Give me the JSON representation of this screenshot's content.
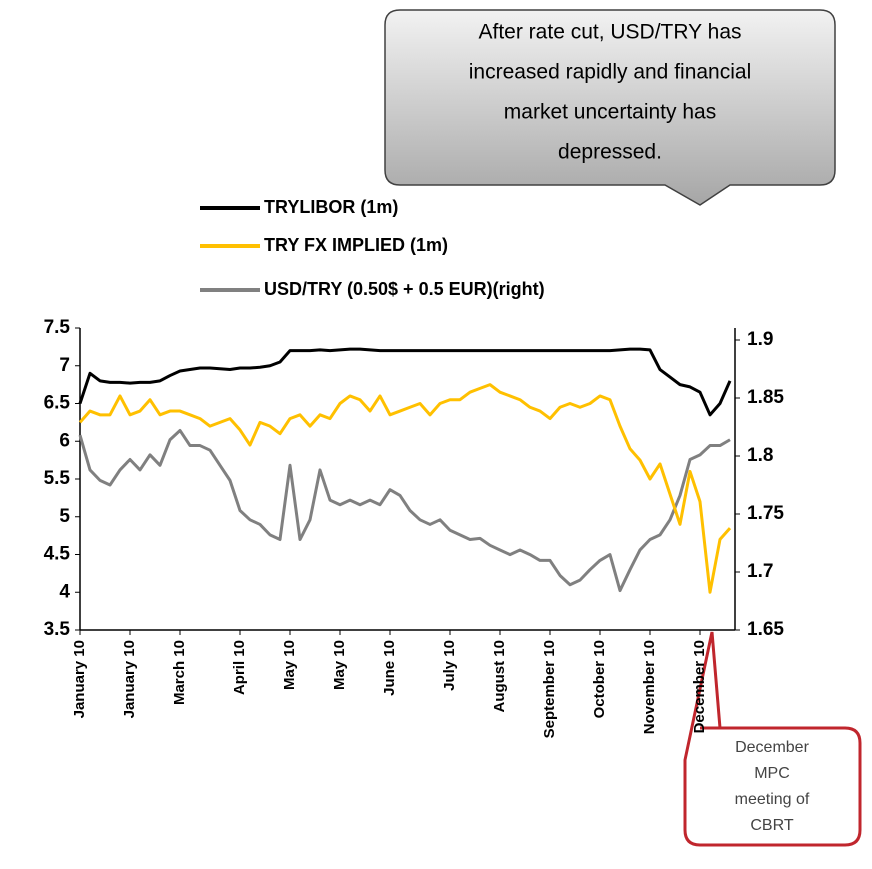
{
  "chart_data": {
    "type": "line",
    "legend": "top",
    "xlim": [
      0,
      65
    ],
    "xticks": [
      {
        "value": 0,
        "label": "January 10"
      },
      {
        "value": 5,
        "label": "January 10"
      },
      {
        "value": 10,
        "label": "March 10"
      },
      {
        "value": 16,
        "label": "April 10"
      },
      {
        "value": 21,
        "label": "May 10"
      },
      {
        "value": 26,
        "label": "May 10"
      },
      {
        "value": 31,
        "label": "June 10"
      },
      {
        "value": 37,
        "label": "July 10"
      },
      {
        "value": 42,
        "label": "August 10"
      },
      {
        "value": 47,
        "label": "September 10"
      },
      {
        "value": 52,
        "label": "October 10"
      },
      {
        "value": 57,
        "label": "November 10"
      },
      {
        "value": 62,
        "label": "December 10"
      }
    ],
    "ylim": [
      3.5,
      7.5
    ],
    "yticks": [
      3.5,
      4,
      4.5,
      5,
      5.5,
      6,
      6.5,
      7,
      7.5
    ],
    "y2lim": [
      1.65,
      1.9
    ],
    "y2ticks": [
      1.65,
      1.7,
      1.75,
      1.8,
      1.85,
      1.9
    ],
    "series": [
      {
        "name": "TRYLIBOR (1m)",
        "color": "#000000",
        "values": [
          6.5,
          6.9,
          6.8,
          6.78,
          6.78,
          6.77,
          6.78,
          6.78,
          6.8,
          6.87,
          6.93,
          6.95,
          6.97,
          6.97,
          6.96,
          6.95,
          6.97,
          6.97,
          6.98,
          7.0,
          7.05,
          7.2,
          7.2,
          7.2,
          7.21,
          7.2,
          7.21,
          7.22,
          7.22,
          7.21,
          7.2,
          7.2,
          7.2,
          7.2,
          7.2,
          7.2,
          7.2,
          7.2,
          7.2,
          7.2,
          7.2,
          7.2,
          7.2,
          7.2,
          7.2,
          7.2,
          7.2,
          7.2,
          7.2,
          7.2,
          7.2,
          7.2,
          7.2,
          7.2,
          7.21,
          7.22,
          7.22,
          7.21,
          6.95,
          6.85,
          6.75,
          6.72,
          6.65,
          6.35,
          6.5,
          6.8
        ]
      },
      {
        "name": "TRY FX IMPLIED (1m)",
        "color": "#ffc000",
        "values": [
          6.25,
          6.4,
          6.35,
          6.35,
          6.6,
          6.35,
          6.4,
          6.55,
          6.35,
          6.4,
          6.4,
          6.35,
          6.3,
          6.2,
          6.25,
          6.3,
          6.15,
          5.95,
          6.25,
          6.2,
          6.1,
          6.3,
          6.35,
          6.2,
          6.35,
          6.3,
          6.5,
          6.6,
          6.55,
          6.4,
          6.6,
          6.35,
          6.4,
          6.45,
          6.5,
          6.35,
          6.5,
          6.55,
          6.55,
          6.65,
          6.7,
          6.75,
          6.65,
          6.6,
          6.55,
          6.45,
          6.4,
          6.3,
          6.45,
          6.5,
          6.45,
          6.5,
          6.6,
          6.55,
          6.2,
          5.9,
          5.75,
          5.5,
          5.7,
          5.3,
          4.9,
          5.6,
          5.2,
          4.0,
          4.7,
          4.85
        ]
      },
      {
        "name": "USD/TRY (0.50$ + 0.5 EUR)(right)",
        "color": "#808080",
        "axis": "y2",
        "values": [
          1.818,
          1.788,
          1.779,
          1.775,
          1.788,
          1.797,
          1.788,
          1.801,
          1.792,
          1.814,
          1.822,
          1.809,
          1.809,
          1.805,
          1.792,
          1.779,
          1.753,
          1.745,
          1.741,
          1.732,
          1.728,
          1.792,
          1.728,
          1.745,
          1.788,
          1.762,
          1.758,
          1.762,
          1.758,
          1.762,
          1.758,
          1.771,
          1.766,
          1.753,
          1.745,
          1.741,
          1.745,
          1.736,
          1.732,
          1.728,
          1.729,
          1.723,
          1.719,
          1.715,
          1.719,
          1.715,
          1.71,
          1.71,
          1.697,
          1.689,
          1.693,
          1.702,
          1.71,
          1.715,
          1.684,
          1.702,
          1.719,
          1.728,
          1.732,
          1.745,
          1.766,
          1.797,
          1.801,
          1.809,
          1.809,
          1.814
        ]
      }
    ],
    "annotations": [
      {
        "lines": [
          "After rate cut,  USD/TRY  has",
          "increased rapidly and financial",
          "market uncertainty has",
          "depressed."
        ]
      },
      {
        "lines": [
          "December",
          "MPC",
          "meeting of",
          "CBRT"
        ]
      }
    ]
  }
}
